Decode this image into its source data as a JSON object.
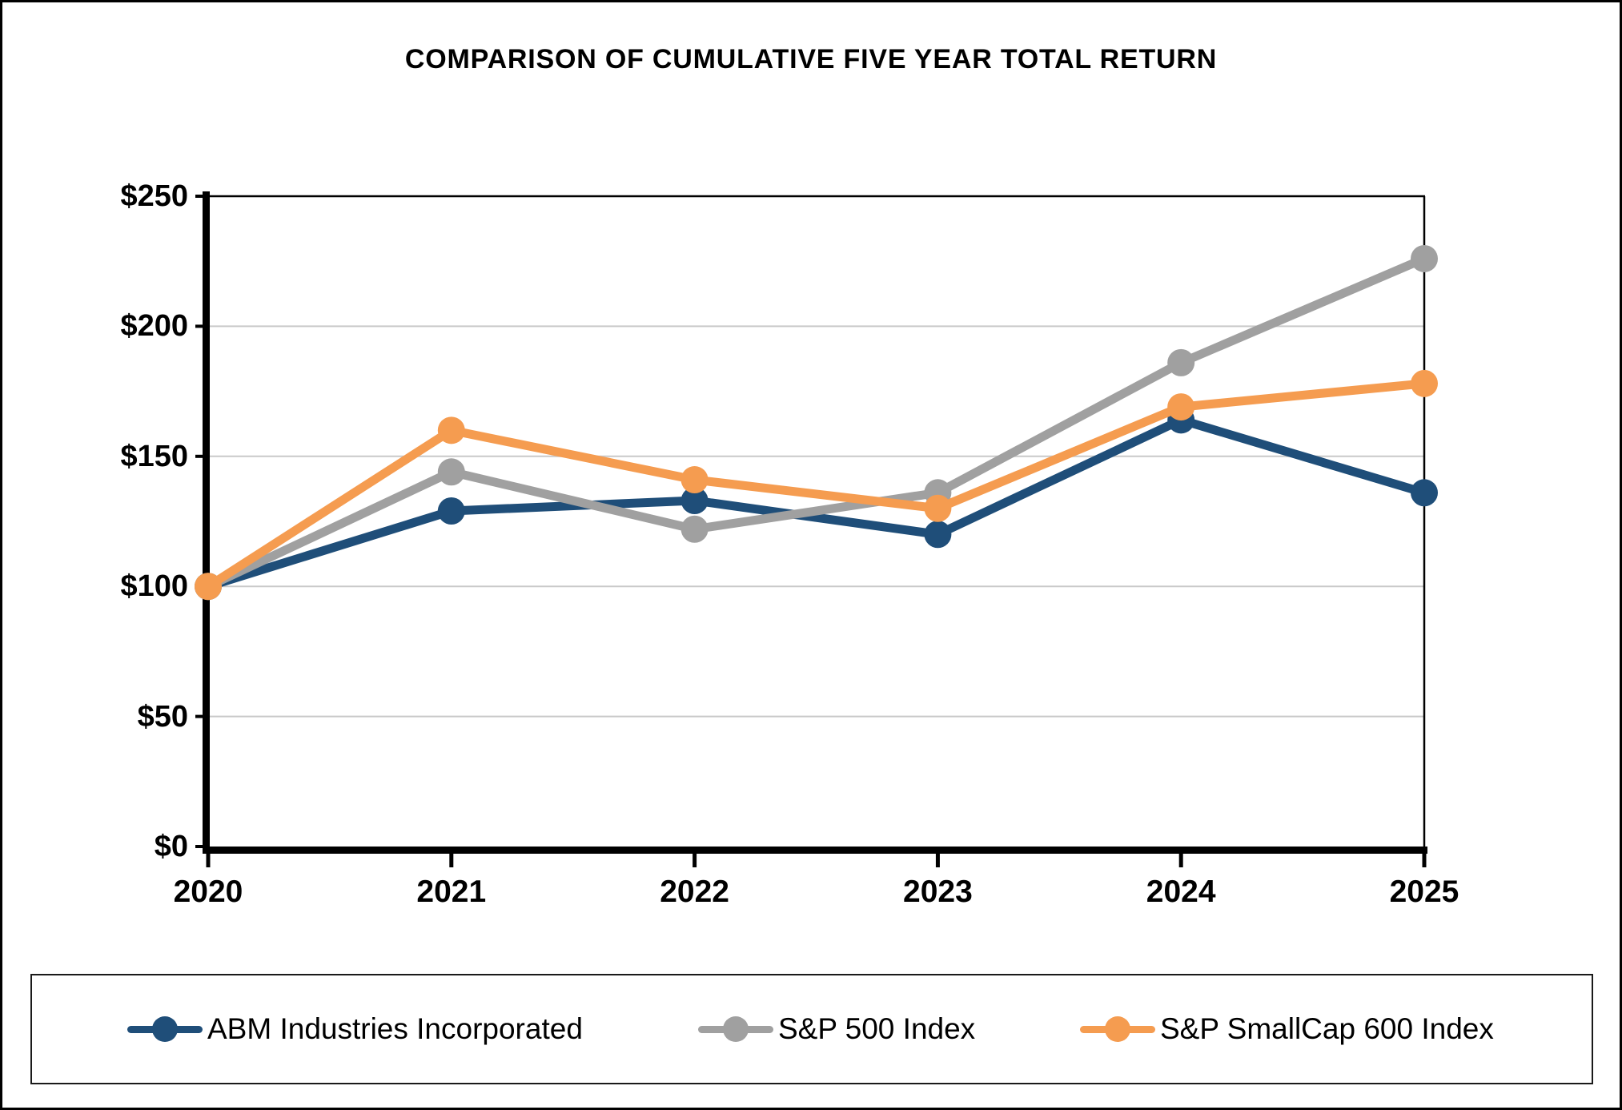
{
  "title": "COMPARISON OF CUMULATIVE FIVE YEAR TOTAL RETURN",
  "chart_data": {
    "type": "line",
    "title": "COMPARISON OF CUMULATIVE FIVE YEAR TOTAL RETURN",
    "categories": [
      "2020",
      "2021",
      "2022",
      "2023",
      "2024",
      "2025"
    ],
    "series": [
      {
        "name": "ABM Industries Incorporated",
        "color": "#1F4E79",
        "values": [
          100,
          129,
          133,
          120,
          164,
          136
        ]
      },
      {
        "name": "S&P 500 Index",
        "color": "#A0A0A0",
        "values": [
          100,
          144,
          122,
          136,
          186,
          226
        ]
      },
      {
        "name": "S&P SmallCap 600 Index",
        "color": "#F59C50",
        "values": [
          100,
          160,
          141,
          130,
          169,
          178
        ]
      }
    ],
    "ylim": [
      0,
      250
    ],
    "ytick_step": 50,
    "ytick_labels": [
      "$0",
      "$50",
      "$100",
      "$150",
      "$200",
      "$250"
    ],
    "xlabel": "",
    "ylabel": "",
    "grid": true,
    "gridline_color": "#C9C9C9",
    "axis_color": "#000000",
    "legend_position": "bottom"
  }
}
